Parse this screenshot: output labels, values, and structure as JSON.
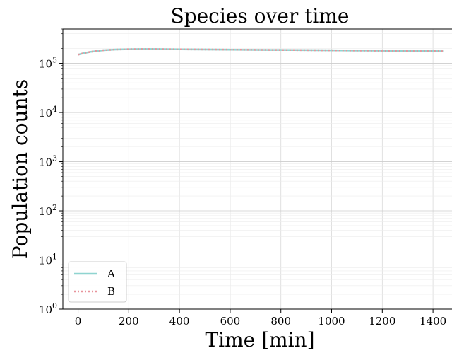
{
  "chart_data": {
    "type": "line",
    "title": "Species over time",
    "xlabel": "Time [min]",
    "ylabel": "Population counts",
    "xlim": [
      -60,
      1500
    ],
    "ylim": [
      1,
      500000
    ],
    "yscale": "log",
    "grid": true,
    "legend_position": "lower-left",
    "x_ticks": [
      0,
      200,
      400,
      600,
      800,
      1000,
      1200,
      1400
    ],
    "y_ticks": [
      {
        "value": 1,
        "base": "10",
        "exp": "0"
      },
      {
        "value": 10,
        "base": "10",
        "exp": "1"
      },
      {
        "value": 100,
        "base": "10",
        "exp": "2"
      },
      {
        "value": 1000,
        "base": "10",
        "exp": "3"
      },
      {
        "value": 10000,
        "base": "10",
        "exp": "4"
      },
      {
        "value": 100000,
        "base": "10",
        "exp": "5"
      }
    ],
    "x": [
      0,
      20,
      50,
      100,
      150,
      200,
      250,
      300,
      400,
      600,
      800,
      1000,
      1200,
      1440
    ],
    "series": [
      {
        "name": "A",
        "color": "#8fd4d0",
        "style": "solid",
        "values": [
          150000,
          160000,
          172000,
          185000,
          191000,
          194000,
          195000,
          195000,
          193000,
          190000,
          187000,
          184000,
          181000,
          177000
        ]
      },
      {
        "name": "B",
        "color": "#e8939b",
        "style": "dotted",
        "values": [
          150000,
          160000,
          172000,
          185000,
          191000,
          194000,
          195000,
          195000,
          193000,
          190000,
          187000,
          184000,
          181000,
          177000
        ]
      }
    ]
  }
}
